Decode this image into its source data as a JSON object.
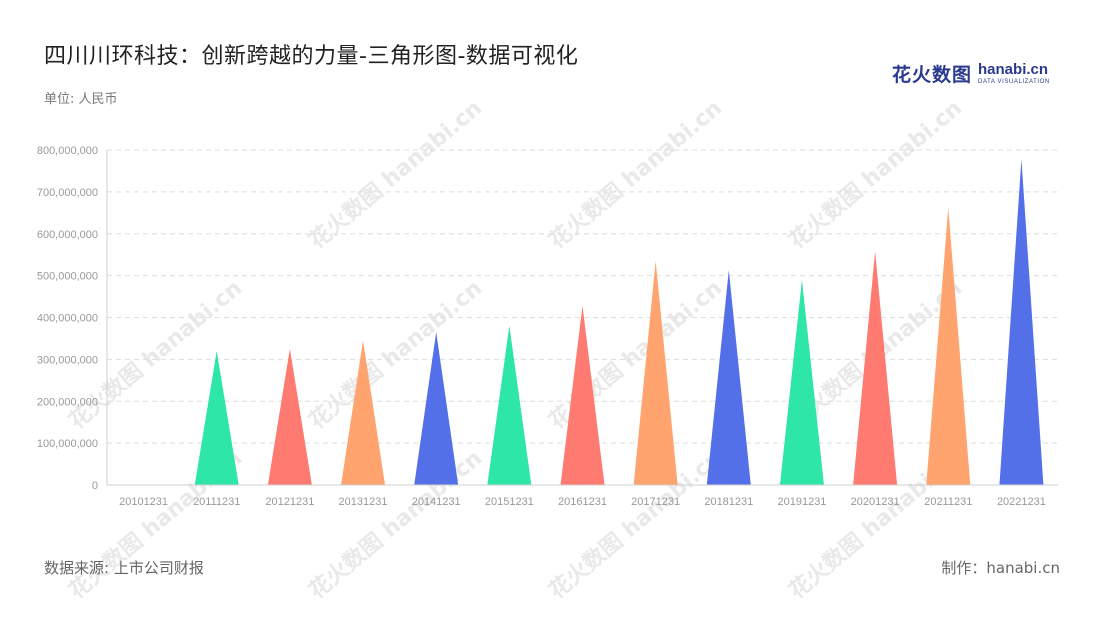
{
  "title": "四川川环科技：创新跨越的力量-三角形图-数据可视化",
  "unit_label": "单位: 人民币",
  "logo": {
    "cn": "花火数图",
    "en": "hanabi.cn",
    "sub": "DATA VISUALIZATION"
  },
  "watermark_text": "花火数图 hanabi.cn",
  "footer": {
    "source": "数据来源: 上市公司财报",
    "credit": "制作：hanabi.cn"
  },
  "colors": [
    "#2ee6a8",
    "#ff7a70",
    "#ffa36f",
    "#5470e8"
  ],
  "chart_data": {
    "type": "bar",
    "mark": "triangle",
    "categories": [
      "20101231",
      "20111231",
      "20121231",
      "20131231",
      "20141231",
      "20151231",
      "20161231",
      "20171231",
      "20181231",
      "20191231",
      "20201231",
      "20211231",
      "20221231"
    ],
    "values": [
      0,
      320000000,
      325000000,
      345000000,
      365000000,
      380000000,
      428000000,
      535000000,
      513000000,
      490000000,
      558000000,
      662000000,
      778000000
    ],
    "color_index": [
      0,
      0,
      1,
      2,
      3,
      0,
      1,
      2,
      3,
      0,
      1,
      2,
      3
    ],
    "ylim": [
      0,
      800000000
    ],
    "yticks": [
      0,
      100000000,
      200000000,
      300000000,
      400000000,
      500000000,
      600000000,
      700000000,
      800000000
    ],
    "ytick_labels": [
      "0",
      "100,000,000",
      "200,000,000",
      "300,000,000",
      "400,000,000",
      "500,000,000",
      "600,000,000",
      "700,000,000",
      "800,000,000"
    ],
    "grid": true,
    "title": "",
    "xlabel": "",
    "ylabel": ""
  }
}
